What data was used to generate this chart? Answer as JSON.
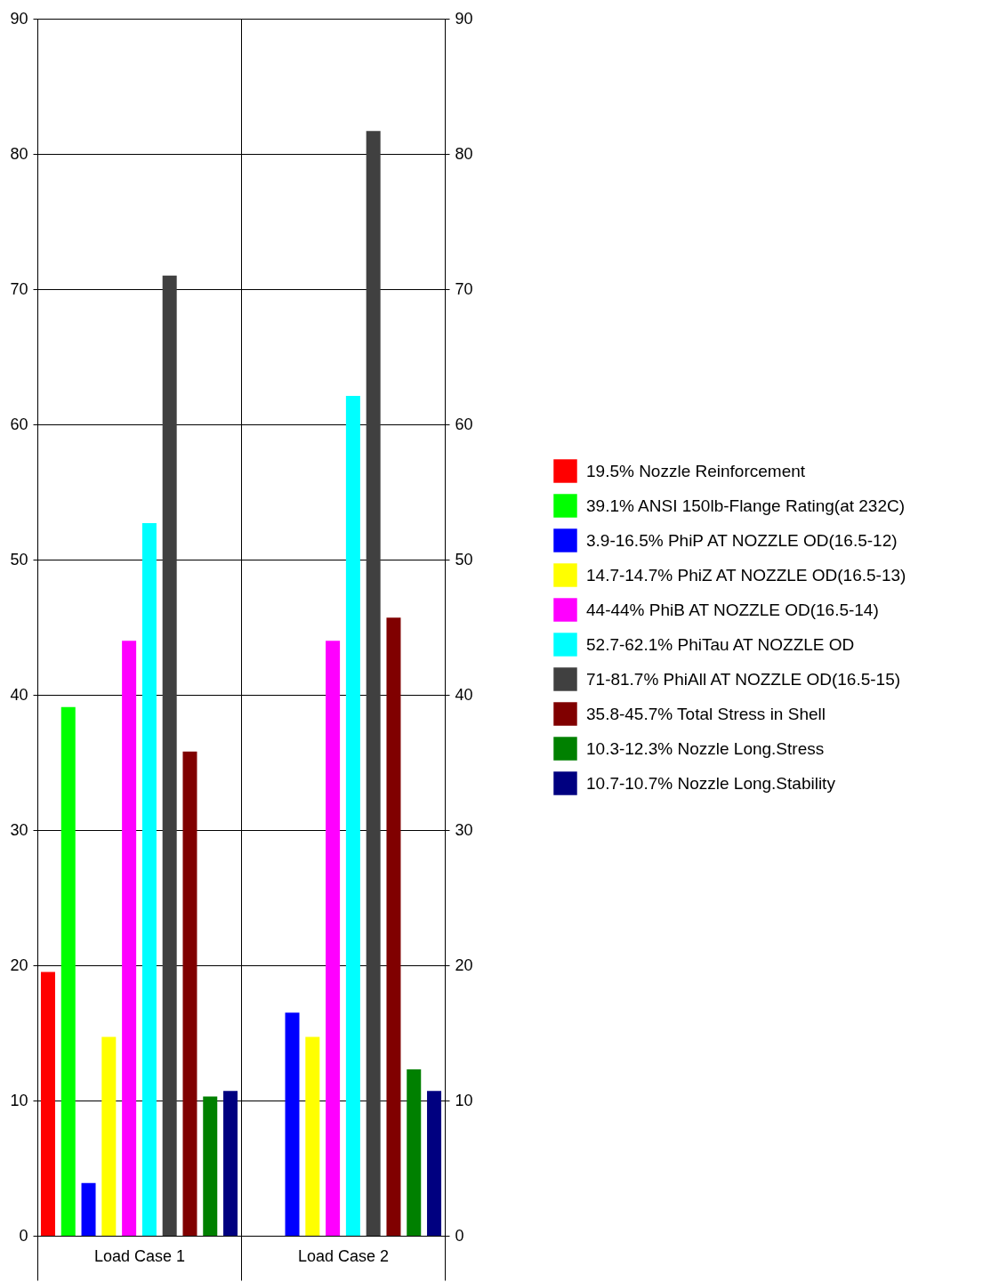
{
  "chart_data": {
    "type": "bar",
    "categories": [
      "Load Case 1",
      "Load Case 2"
    ],
    "series": [
      {
        "name": "19.5% Nozzle Reinforcement",
        "color": "#ff0000",
        "values": [
          19.5,
          null
        ]
      },
      {
        "name": "39.1% ANSI 150lb-Flange Rating(at 232C)",
        "color": "#00ff00",
        "values": [
          39.1,
          null
        ]
      },
      {
        "name": "3.9-16.5% PhiP AT NOZZLE OD(16.5-12)",
        "color": "#0000ff",
        "values": [
          3.9,
          16.5
        ]
      },
      {
        "name": "14.7-14.7% PhiZ AT NOZZLE OD(16.5-13)",
        "color": "#ffff00",
        "values": [
          14.7,
          14.7
        ]
      },
      {
        "name": "44-44% PhiB AT NOZZLE OD(16.5-14)",
        "color": "#ff00ff",
        "values": [
          44,
          44
        ]
      },
      {
        "name": "52.7-62.1% PhiTau AT NOZZLE OD",
        "color": "#00ffff",
        "values": [
          52.7,
          62.1
        ]
      },
      {
        "name": "71-81.7% PhiAll AT NOZZLE OD(16.5-15)",
        "color": "#404040",
        "values": [
          71,
          81.7
        ]
      },
      {
        "name": "35.8-45.7% Total Stress in Shell",
        "color": "#800000",
        "values": [
          35.8,
          45.7
        ]
      },
      {
        "name": "10.3-12.3% Nozzle Long.Stress",
        "color": "#008000",
        "values": [
          10.3,
          12.3
        ]
      },
      {
        "name": "10.7-10.7% Nozzle Long.Stability",
        "color": "#000080",
        "values": [
          10.7,
          10.7
        ]
      }
    ],
    "ylim": [
      0,
      90
    ],
    "yticks": [
      0,
      10,
      20,
      30,
      40,
      50,
      60,
      70,
      80,
      90
    ],
    "y2lim": [
      0,
      90
    ],
    "y2ticks": [
      0,
      10,
      20,
      30,
      40,
      50,
      60,
      70,
      80,
      90
    ],
    "grid": true,
    "legend": "right"
  }
}
